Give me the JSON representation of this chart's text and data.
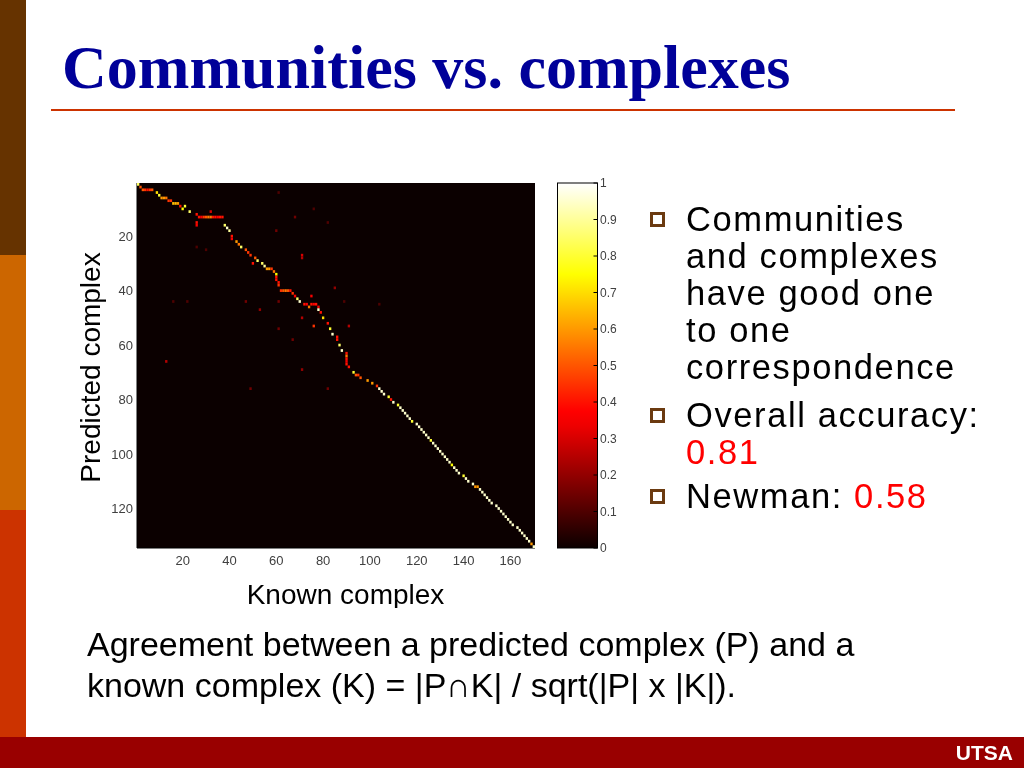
{
  "chart_data": {
    "type": "scatter",
    "title": "Communities vs. complexes",
    "xlabel": "Known complex",
    "ylabel": "Predicted complex",
    "marker": "square",
    "xlim": [
      0.5,
      170.5
    ],
    "ylim": [
      134.5,
      0.5
    ],
    "xticks": [
      20,
      40,
      60,
      80,
      100,
      120,
      140,
      160
    ],
    "yticks": [
      20,
      40,
      60,
      80,
      100,
      120
    ],
    "clim": [
      0,
      1
    ],
    "cticks": [
      0,
      0.1,
      0.2,
      0.3,
      0.4,
      0.5,
      0.6,
      0.7,
      0.8,
      0.9,
      1
    ],
    "x": [
      1,
      2,
      3,
      4,
      5,
      6,
      7,
      9,
      10,
      11,
      12,
      13,
      14,
      15,
      16,
      17,
      18,
      19,
      21,
      20,
      23,
      32,
      26,
      27,
      28,
      29,
      30,
      31,
      32,
      33,
      34,
      35,
      36,
      37,
      26,
      26,
      38,
      39,
      40,
      41,
      41,
      43,
      44,
      45,
      47,
      48,
      49,
      51,
      52,
      50,
      54,
      55,
      56,
      57,
      58,
      59,
      60,
      60,
      60,
      61,
      61,
      62,
      63,
      64,
      65,
      66,
      67,
      68,
      69,
      70,
      72,
      73,
      75,
      76,
      77,
      74,
      78,
      78,
      79,
      80,
      82,
      76,
      83,
      84,
      86,
      86,
      87,
      88,
      90,
      90,
      90,
      90,
      90,
      91,
      93,
      94,
      95,
      96,
      99,
      101,
      103,
      104,
      105,
      106,
      108,
      109,
      110,
      112,
      113,
      114,
      115,
      116,
      117,
      118,
      120,
      121,
      122,
      123,
      124,
      125,
      126,
      127,
      128,
      129,
      130,
      131,
      132,
      133,
      134,
      135,
      136,
      137,
      138,
      140,
      141,
      142,
      144,
      145,
      146,
      147,
      148,
      149,
      150,
      151,
      152,
      154,
      155,
      156,
      157,
      158,
      159,
      160,
      161,
      163,
      164,
      165,
      166,
      167,
      168,
      169,
      170,
      61,
      76,
      68,
      82,
      60,
      26,
      30,
      71,
      71,
      85,
      75,
      16,
      22,
      47,
      61,
      89,
      104,
      53,
      71,
      91,
      61,
      67,
      13,
      71,
      49,
      82
    ],
    "values": [
      1,
      2,
      3,
      3,
      3,
      3,
      3,
      4,
      5,
      6,
      6,
      6,
      7,
      7,
      8,
      8,
      8,
      9,
      9,
      10,
      11,
      11,
      12,
      13,
      13,
      13,
      13,
      13,
      13,
      13,
      13,
      13,
      13,
      13,
      15,
      16,
      16,
      17,
      18,
      20,
      21,
      22,
      23,
      24,
      25,
      26,
      27,
      28,
      29,
      30,
      30,
      31,
      32,
      32,
      32,
      33,
      34,
      35,
      36,
      37,
      38,
      40,
      40,
      40,
      40,
      40,
      41,
      42,
      43,
      44,
      45,
      45,
      45,
      45,
      45,
      46,
      46,
      47,
      48,
      50,
      52,
      53,
      54,
      56,
      57,
      58,
      60,
      62,
      63,
      64,
      65,
      66,
      67,
      68,
      70,
      71,
      71,
      72,
      73,
      74,
      75,
      76,
      77,
      78,
      79,
      80,
      81,
      82,
      83,
      84,
      85,
      86,
      87,
      88,
      89,
      90,
      91,
      92,
      93,
      94,
      95,
      96,
      97,
      98,
      99,
      100,
      101,
      102,
      103,
      104,
      105,
      106,
      107,
      108,
      109,
      110,
      111,
      112,
      112,
      113,
      114,
      115,
      116,
      117,
      118,
      119,
      120,
      121,
      122,
      123,
      124,
      125,
      126,
      127,
      128,
      129,
      130,
      131,
      132,
      133,
      134,
      4,
      10,
      13,
      15,
      18,
      24,
      25,
      27,
      28,
      39,
      42,
      44,
      44,
      44,
      44,
      44,
      45,
      47,
      50,
      53,
      54,
      58,
      66,
      69,
      76,
      76
    ],
    "cvalues": [
      0.85,
      0.5,
      0.5,
      0.45,
      0.4,
      0.45,
      0.5,
      0.7,
      0.8,
      0.6,
      0.6,
      0.55,
      0.45,
      0.45,
      0.65,
      0.65,
      0.6,
      0.4,
      0.8,
      0.75,
      0.85,
      0.3,
      0.4,
      0.4,
      0.35,
      0.45,
      0.5,
      0.55,
      0.55,
      0.4,
      0.4,
      0.35,
      0.4,
      0.4,
      0.4,
      0.35,
      0.85,
      0.95,
      0.9,
      0.4,
      0.35,
      0.6,
      0.55,
      0.85,
      0.5,
      0.45,
      0.45,
      0.5,
      0.85,
      0.4,
      0.85,
      0.9,
      0.6,
      0.6,
      0.45,
      0.55,
      0.75,
      0.4,
      0.4,
      0.4,
      0.45,
      0.45,
      0.5,
      0.55,
      0.5,
      0.4,
      0.45,
      0.35,
      0.85,
      0.95,
      0.4,
      0.35,
      0.4,
      0.35,
      0.4,
      0.55,
      0.35,
      0.95,
      0.4,
      0.7,
      0.4,
      0.45,
      0.8,
      0.95,
      0.4,
      0.4,
      0.85,
      0.95,
      0.4,
      0.55,
      0.4,
      0.35,
      0.4,
      0.4,
      0.8,
      0.5,
      0.45,
      0.5,
      0.6,
      0.6,
      0.45,
      0.95,
      0.95,
      0.95,
      0.8,
      0.4,
      0.95,
      0.8,
      0.95,
      0.95,
      0.95,
      0.95,
      0.95,
      0.8,
      0.95,
      0.95,
      0.95,
      0.95,
      0.95,
      0.95,
      0.8,
      0.95,
      0.95,
      0.95,
      0.95,
      0.95,
      0.95,
      0.95,
      0.95,
      0.75,
      0.95,
      0.95,
      0.95,
      0.8,
      0.95,
      0.95,
      0.95,
      0.6,
      0.6,
      0.95,
      0.95,
      0.95,
      0.95,
      0.95,
      0.95,
      0.95,
      0.95,
      0.95,
      0.95,
      0.95,
      0.95,
      0.95,
      0.95,
      0.95,
      0.95,
      0.95,
      0.95,
      0.95,
      0.95,
      0.6,
      0.95,
      0.1,
      0.1,
      0.15,
      0.1,
      0.15,
      0.1,
      0.1,
      0.3,
      0.25,
      0.2,
      0.35,
      0.1,
      0.1,
      0.15,
      0.15,
      0.1,
      0.1,
      0.2,
      0.25,
      0.25,
      0.15,
      0.15,
      0.25,
      0.2,
      0.15,
      0.15
    ],
    "annotations": [
      "Communities and complexes have good one to one correspondence",
      "Overall accuracy: 0.81",
      "Newman: 0.58",
      "Agreement between a predicted complex (P) and a known complex (K) = |P∩K| / sqrt(|P| x |K|).",
      "UTSA"
    ]
  }
}
